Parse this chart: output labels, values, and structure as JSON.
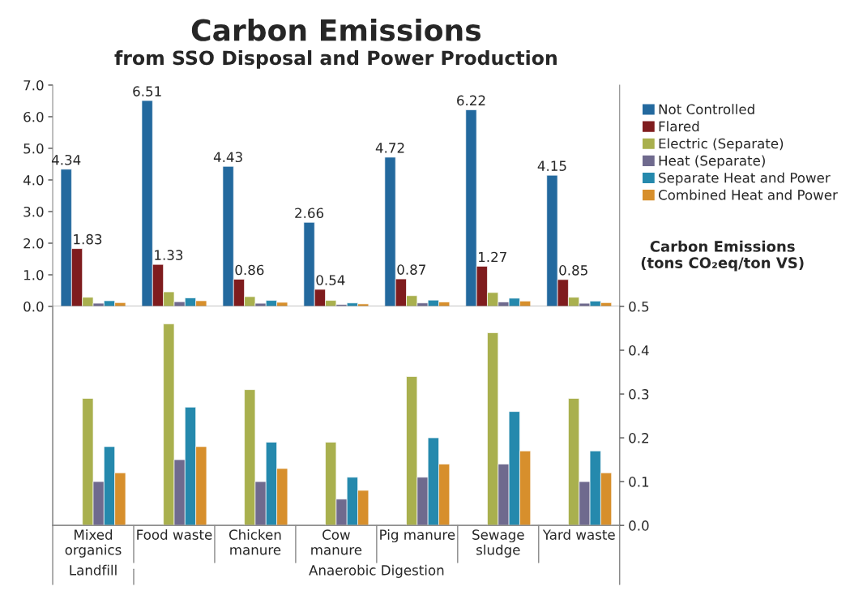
{
  "chart_data": [
    {
      "type": "bar",
      "title": "Carbon Emissions",
      "subtitle": "from SSO Disposal and Power Production",
      "ylabel": "Carbon Emissions\n(tons CO₂eq/ton VS)",
      "categories": [
        null,
        null,
        null,
        null,
        null,
        null,
        null
      ],
      "series": [
        {
          "name": "Not Controlled",
          "color": "#23699e",
          "values": [
            4.34,
            6.51,
            4.43,
            2.66,
            4.72,
            6.22,
            4.15
          ],
          "value_labels": [
            "4.34",
            "6.51",
            "4.43",
            "2.66",
            "4.72",
            "6.22",
            "4.15"
          ]
        },
        {
          "name": "Flared",
          "color": "#7f1c1e",
          "values": [
            1.83,
            1.33,
            0.86,
            0.54,
            0.87,
            1.27,
            0.85
          ],
          "value_labels": [
            "1.83",
            "1.33",
            "0.86",
            "0.54",
            "0.87",
            "1.27",
            "0.85"
          ]
        },
        {
          "name": "Electric (Separate)",
          "color": "#a9b04e",
          "values": [
            0.29,
            0.46,
            0.31,
            0.19,
            0.34,
            0.44,
            0.29
          ]
        },
        {
          "name": "Heat (Separate)",
          "color": "#6f6a8e",
          "values": [
            0.1,
            0.15,
            0.1,
            0.06,
            0.11,
            0.14,
            0.1
          ]
        },
        {
          "name": "Separate Heat and Power",
          "color": "#2589ad",
          "values": [
            0.18,
            0.27,
            0.19,
            0.11,
            0.2,
            0.26,
            0.17
          ]
        },
        {
          "name": "Combined Heat and Power",
          "color": "#d78f2c",
          "values": [
            0.12,
            0.18,
            0.13,
            0.08,
            0.14,
            0.17,
            0.12
          ]
        }
      ],
      "ylim": [
        0,
        7
      ],
      "yticks": [
        {
          "value": 0,
          "label": "0.0"
        },
        {
          "value": 1,
          "label": "1.0"
        },
        {
          "value": 2,
          "label": "2.0"
        },
        {
          "value": 3,
          "label": "3.0"
        },
        {
          "value": 4,
          "label": "4.0"
        },
        {
          "value": 5,
          "label": "5.0"
        },
        {
          "value": 6,
          "label": "6.0"
        },
        {
          "value": 7,
          "label": "7.0"
        }
      ],
      "tick_labels": "y",
      "legend": "right",
      "grid": false
    },
    {
      "type": "bar",
      "categories": [
        "Mixed\norganics",
        "Food waste",
        "Chicken\nmanure",
        "Cow\nmanure",
        "Pig manure",
        "Sewage\nsludge",
        "Yard waste"
      ],
      "series": [
        {
          "color": "#23699e",
          "axis": "y2",
          "values": [
            null,
            null,
            null,
            null,
            null,
            null,
            null
          ]
        },
        {
          "color": "#7f1c1e",
          "axis": "y2",
          "values": [
            null,
            null,
            null,
            null,
            null,
            null,
            null
          ]
        },
        {
          "color": "#a9b04e",
          "axis": "y2",
          "values": [
            0.29,
            0.46,
            0.31,
            0.19,
            0.34,
            0.44,
            0.29
          ]
        },
        {
          "color": "#6f6a8e",
          "axis": "y2",
          "values": [
            0.1,
            0.15,
            0.1,
            0.06,
            0.11,
            0.14,
            0.1
          ]
        },
        {
          "color": "#2589ad",
          "axis": "y2",
          "values": [
            0.18,
            0.27,
            0.19,
            0.11,
            0.2,
            0.26,
            0.17
          ]
        },
        {
          "color": "#d78f2c",
          "axis": "y2",
          "values": [
            0.12,
            0.18,
            0.13,
            0.08,
            0.14,
            0.17,
            0.12
          ]
        }
      ],
      "y2lim": [
        0,
        0.5
      ],
      "y2ticks": [
        {
          "value": 0,
          "label": "0.0"
        },
        {
          "value": 0.1,
          "label": "0.1"
        },
        {
          "value": 0.2,
          "label": "0.2"
        },
        {
          "value": 0.3,
          "label": "0.3"
        },
        {
          "value": 0.4,
          "label": "0.4"
        },
        {
          "value": 0.5,
          "label": "0.5"
        }
      ],
      "annotations": [
        "Landfill",
        "Anaerobic Digestion"
      ],
      "grid": false
    }
  ]
}
